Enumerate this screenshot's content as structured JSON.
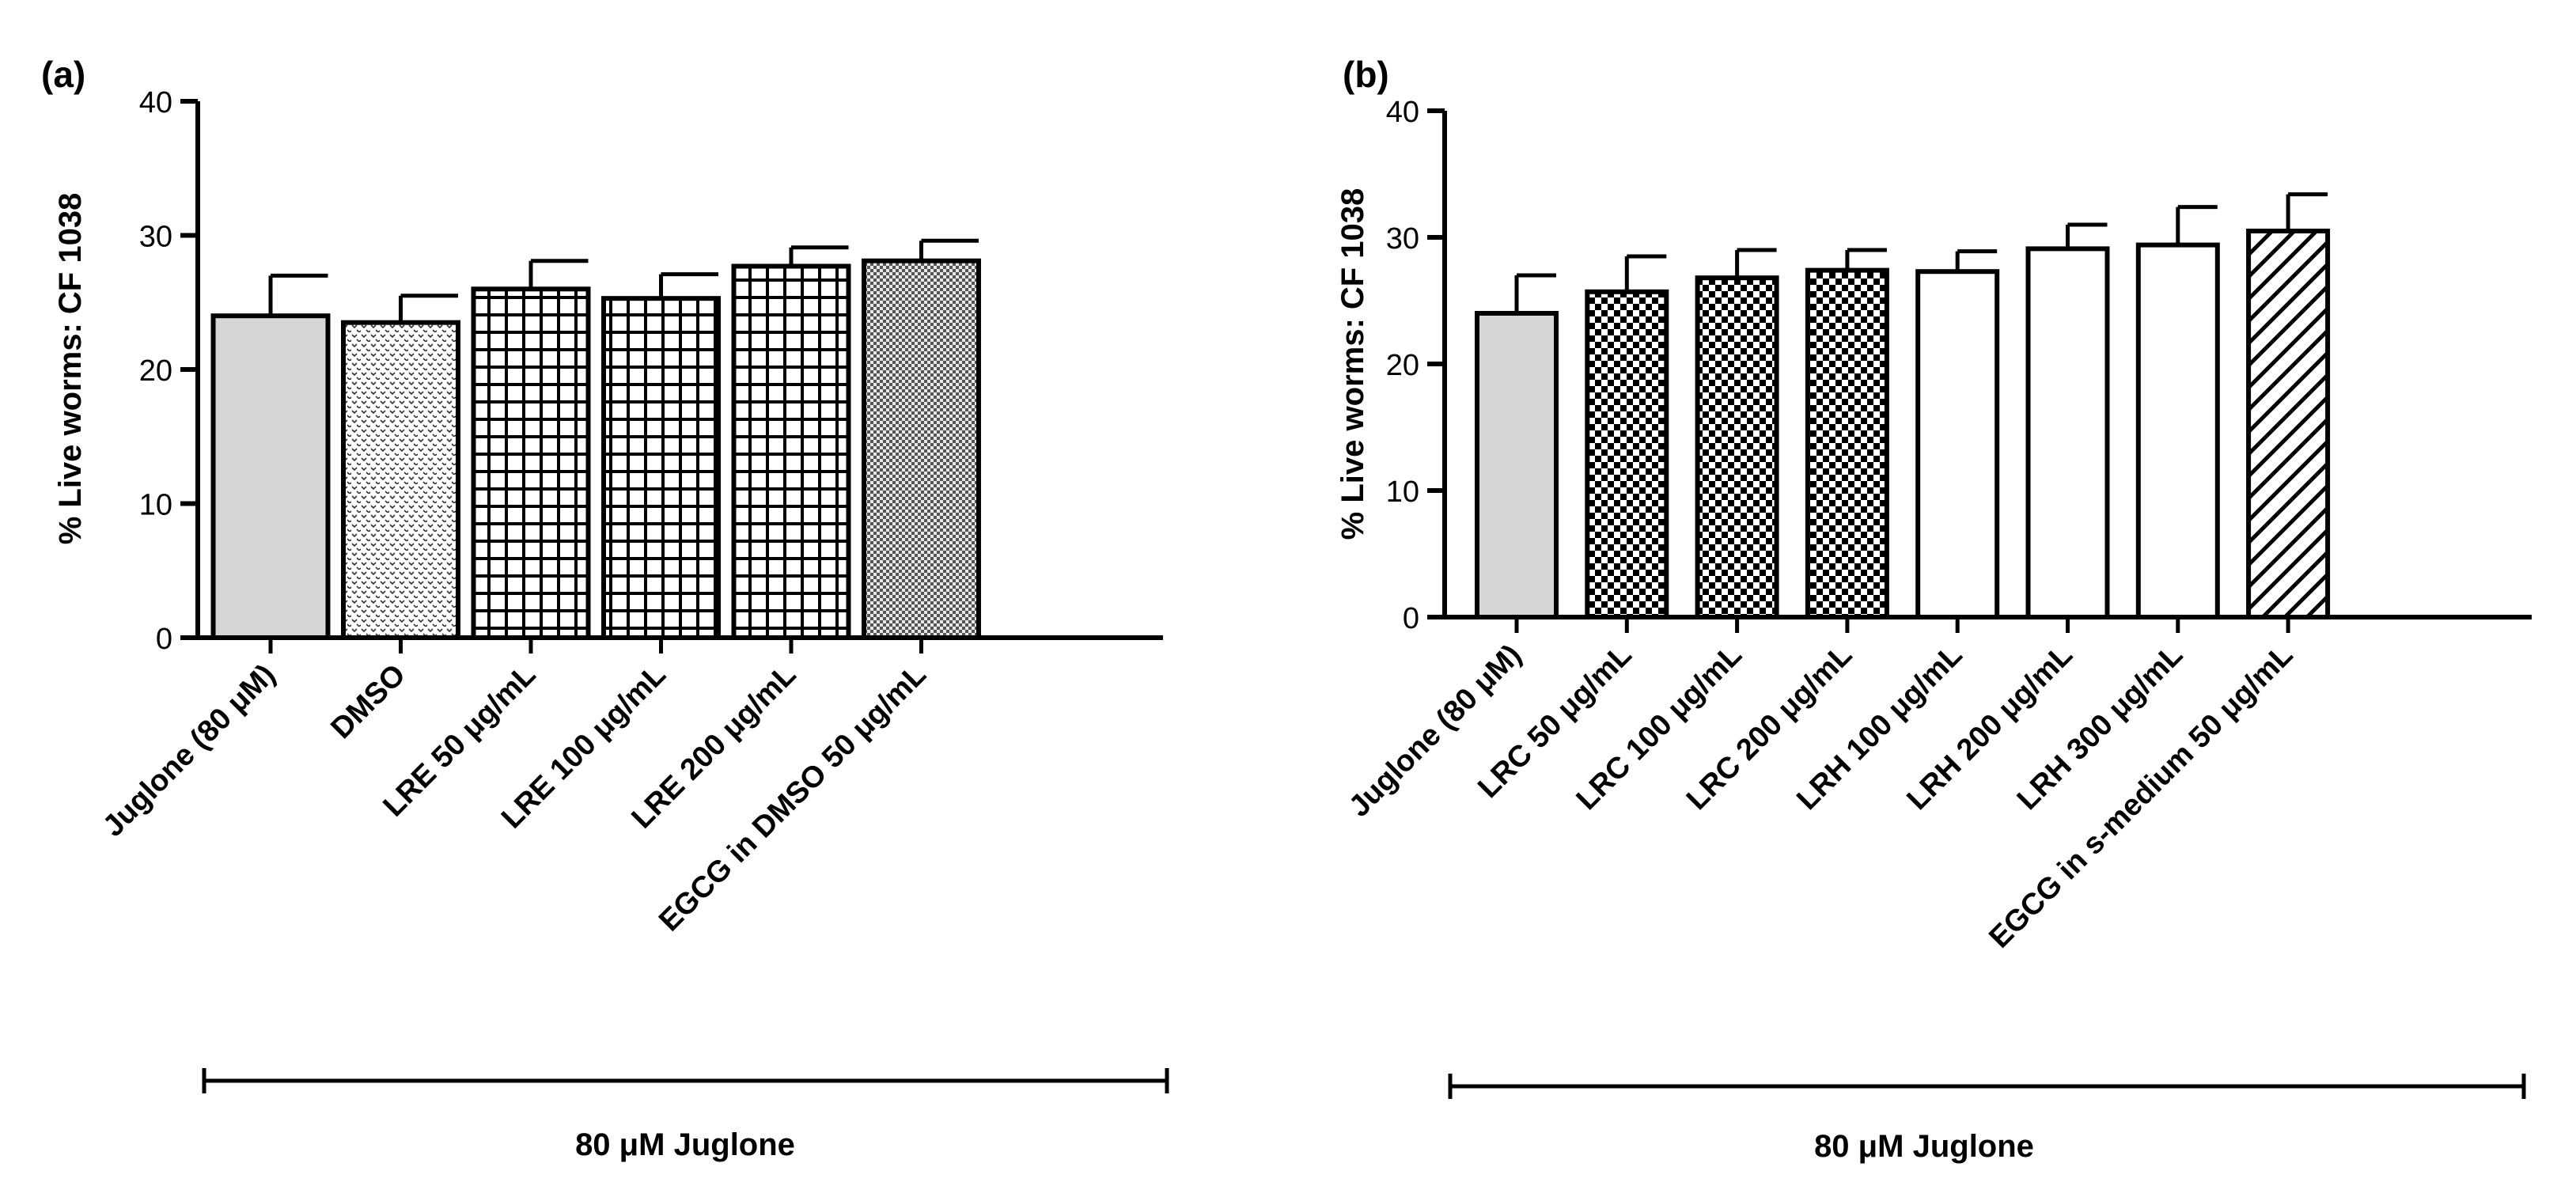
{
  "chart_data": [
    {
      "type": "bar",
      "panel_label": "(a)",
      "ylabel": "% Live worms: CF 1038",
      "ylim": [
        0,
        40
      ],
      "yticks": [
        "0",
        "10",
        "20",
        "30",
        "40"
      ],
      "categories": [
        "Juglone (80 μM)",
        "DMSO",
        "LRE 50 μg/mL",
        "LRE 100 μg/mL",
        "LRE 200 μg/mL",
        "EGCG in DMSO 50 μg/mL"
      ],
      "values": [
        24,
        23.5,
        26,
        25.3,
        27.7,
        28.1
      ],
      "errors": [
        3,
        2,
        2.1,
        1.8,
        1.4,
        1.5
      ],
      "fills": [
        "solid-gray",
        "dots",
        "grid",
        "grid",
        "grid",
        "fine-check"
      ],
      "group_label": "80 μM Juglone"
    },
    {
      "type": "bar",
      "panel_label": "(b)",
      "ylabel": "% Live worms: CF 1038",
      "ylim": [
        0,
        40
      ],
      "yticks": [
        "0",
        "10",
        "20",
        "30",
        "40"
      ],
      "categories": [
        "Juglone (80 μM)",
        "LRC 50  μg/mL",
        "LRC 100  μg/mL",
        "LRC 200 μg/mL",
        "LRH 100  μg/mL",
        "LRH 200  μg/mL",
        "LRH 300 μg/mL",
        "EGCG in s-medium 50  μg/mL"
      ],
      "values": [
        24,
        25.7,
        26.8,
        27.4,
        27.3,
        29.1,
        29.4,
        30.5
      ],
      "errors": [
        3,
        2.8,
        2.2,
        1.6,
        1.6,
        1.9,
        3,
        2.9
      ],
      "fills": [
        "solid-gray",
        "check",
        "check",
        "check",
        "white",
        "white",
        "white",
        "diag"
      ],
      "group_label": "80 μM Juglone"
    }
  ]
}
